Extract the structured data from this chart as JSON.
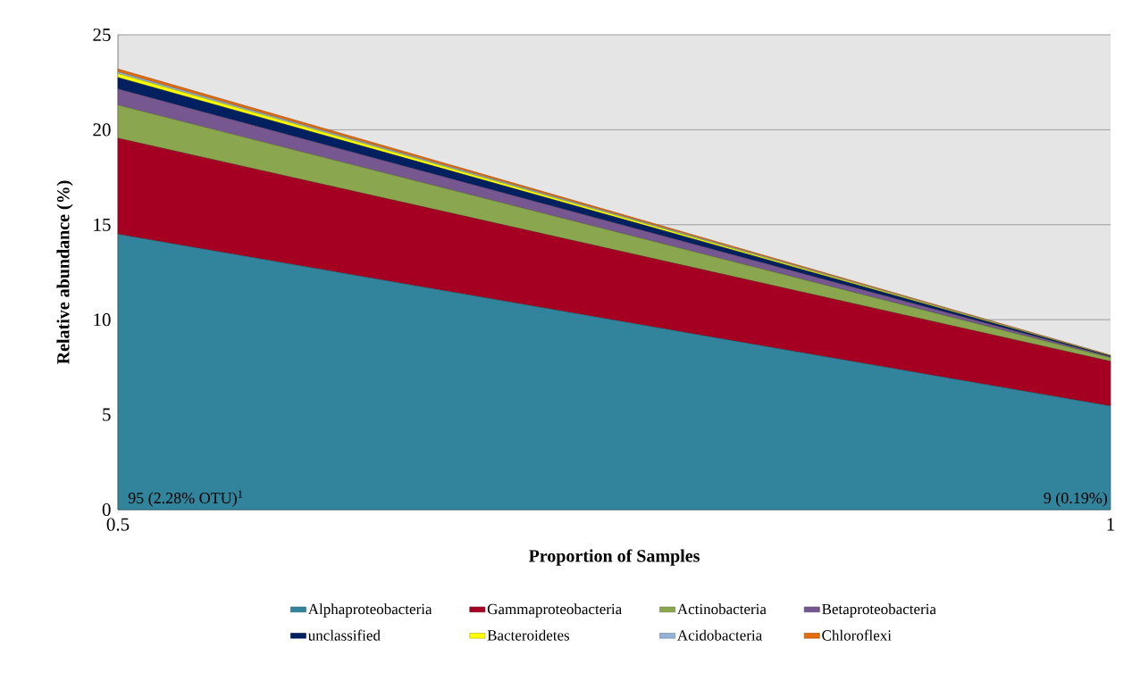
{
  "chart_data": {
    "type": "area",
    "stacked": true,
    "xlabel": "Proportion of Samples",
    "ylabel": "Relative abundance  (%)",
    "x": [
      0.5,
      1
    ],
    "xlim": [
      0.5,
      1
    ],
    "xticks": [
      0.5,
      1
    ],
    "ylim": [
      0,
      25
    ],
    "yticks": [
      0,
      5,
      10,
      15,
      20,
      25
    ],
    "grid": "y",
    "legend": "bottom",
    "series": [
      {
        "name": "Alphaproteobacteria",
        "color": "#31849b",
        "values": [
          14.5,
          5.45
        ]
      },
      {
        "name": "Gammaproteobacteria",
        "color": "#a50021",
        "values": [
          5.05,
          2.35
        ]
      },
      {
        "name": "Actinobacteria",
        "color": "#8aa64f",
        "values": [
          1.75,
          0.2
        ]
      },
      {
        "name": "Betaproteobacteria",
        "color": "#76578f",
        "values": [
          0.85,
          0.05
        ]
      },
      {
        "name": "unclassified",
        "color": "#002060",
        "values": [
          0.6,
          0.03
        ]
      },
      {
        "name": "Bacteroidetes",
        "color": "#ffff00",
        "values": [
          0.2,
          0.01
        ]
      },
      {
        "name": "Acidobacteria",
        "color": "#95b3d7",
        "values": [
          0.1,
          0.02
        ]
      },
      {
        "name": "Chloroflexi",
        "color": "#e46c0a",
        "values": [
          0.15,
          0.02
        ]
      }
    ],
    "annotations": [
      {
        "text": "95 (2.28% OTU)$^{1}$",
        "x": 0.5,
        "y": 0
      },
      {
        "text": "9 (0.19%)",
        "x": 1,
        "y": 0
      }
    ]
  }
}
